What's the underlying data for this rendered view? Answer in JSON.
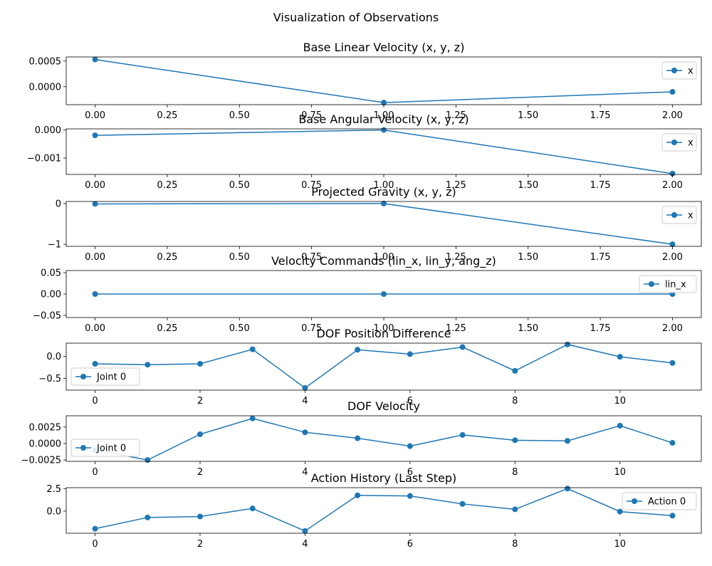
{
  "figure": {
    "suptitle": "Visualization of Observations",
    "series_color": "#1f77b4"
  },
  "chart_data": [
    {
      "type": "line",
      "title": "Base Linear Velocity (x, y, z)",
      "x": [
        0,
        1,
        2
      ],
      "series": [
        {
          "name": "x",
          "values": [
            0.00053,
            -0.00031,
            -0.0001
          ]
        }
      ],
      "xlim": [
        -0.1,
        2.1
      ],
      "ylim": [
        -0.00035,
        0.00058
      ],
      "xticks": [
        0,
        0.25,
        0.5,
        0.75,
        1.0,
        1.25,
        1.5,
        1.75,
        2.0
      ],
      "xtick_labels": [
        "0.00",
        "0.25",
        "0.50",
        "0.75",
        "1.00",
        "1.25",
        "1.50",
        "1.75",
        "2.00"
      ],
      "yticks": [
        0,
        0.0005
      ],
      "ytick_labels": [
        "0.0000",
        "0.0005"
      ],
      "legend": "right"
    },
    {
      "type": "line",
      "title": "Base Angular Velocity (x, y, z)",
      "x": [
        0,
        1,
        2
      ],
      "series": [
        {
          "name": "x",
          "values": [
            -0.00019,
            0.0,
            -0.00155
          ]
        }
      ],
      "xlim": [
        -0.1,
        2.1
      ],
      "ylim": [
        -0.00158,
        4e-05
      ],
      "xticks": [
        0,
        0.25,
        0.5,
        0.75,
        1.0,
        1.25,
        1.5,
        1.75,
        2.0
      ],
      "xtick_labels": [
        "0.00",
        "0.25",
        "0.50",
        "0.75",
        "1.00",
        "1.25",
        "1.50",
        "1.75",
        "2.00"
      ],
      "yticks": [
        0,
        -0.001
      ],
      "ytick_labels": [
        "0.000",
        "−0.001"
      ],
      "legend": "right"
    },
    {
      "type": "line",
      "title": "Projected Gravity (x, y, z)",
      "x": [
        0,
        1,
        2
      ],
      "series": [
        {
          "name": "x",
          "values": [
            -0.01,
            0.0,
            -1.0
          ]
        }
      ],
      "xlim": [
        -0.1,
        2.1
      ],
      "ylim": [
        -1.05,
        0.05
      ],
      "xticks": [
        0,
        0.25,
        0.5,
        0.75,
        1.0,
        1.25,
        1.5,
        1.75,
        2.0
      ],
      "xtick_labels": [
        "0.00",
        "0.25",
        "0.50",
        "0.75",
        "1.00",
        "1.25",
        "1.50",
        "1.75",
        "2.00"
      ],
      "yticks": [
        0,
        -1
      ],
      "ytick_labels": [
        "0",
        "−1"
      ],
      "legend": "right"
    },
    {
      "type": "line",
      "title": "Velocity Commands (lin_x, lin_y, ang_z)",
      "x": [
        0,
        1,
        2
      ],
      "series": [
        {
          "name": "lin_x",
          "values": [
            0,
            0,
            0
          ]
        }
      ],
      "xlim": [
        -0.1,
        2.1
      ],
      "ylim": [
        -0.055,
        0.055
      ],
      "xticks": [
        0,
        0.25,
        0.5,
        0.75,
        1.0,
        1.25,
        1.5,
        1.75,
        2.0
      ],
      "xtick_labels": [
        "0.00",
        "0.25",
        "0.50",
        "0.75",
        "1.00",
        "1.25",
        "1.50",
        "1.75",
        "2.00"
      ],
      "yticks": [
        0.05,
        0,
        -0.05
      ],
      "ytick_labels": [
        "0.05",
        "0.00",
        "−0.05"
      ],
      "legend": "right"
    },
    {
      "type": "line",
      "title": "DOF Position Difference",
      "x": [
        0,
        1,
        2,
        3,
        4,
        5,
        6,
        7,
        8,
        9,
        10,
        11
      ],
      "series": [
        {
          "name": "Joint 0",
          "values": [
            -0.17,
            -0.19,
            -0.17,
            0.16,
            -0.72,
            0.15,
            0.05,
            0.21,
            -0.33,
            0.27,
            -0.01,
            -0.15
          ]
        }
      ],
      "xlim": [
        -0.55,
        11.55
      ],
      "ylim": [
        -0.77,
        0.3
      ],
      "xticks": [
        0,
        2,
        4,
        6,
        8,
        10
      ],
      "xtick_labels": [
        "0",
        "2",
        "4",
        "6",
        "8",
        "10"
      ],
      "yticks": [
        0,
        -0.5
      ],
      "ytick_labels": [
        "0.0",
        "−0.5"
      ],
      "legend": "left"
    },
    {
      "type": "line",
      "title": "DOF Velocity",
      "x": [
        0,
        1,
        2,
        3,
        4,
        5,
        6,
        7,
        8,
        9,
        10,
        11
      ],
      "series": [
        {
          "name": "Joint 0",
          "values": [
            -0.001,
            -0.0025,
            0.0014,
            0.0038,
            0.0017,
            0.0008,
            -0.0004,
            0.0013,
            0.0005,
            0.0004,
            0.0027,
            0.0001
          ]
        }
      ],
      "xlim": [
        -0.55,
        11.55
      ],
      "ylim": [
        -0.0027,
        0.0042
      ],
      "xticks": [
        0,
        2,
        4,
        6,
        8,
        10
      ],
      "xtick_labels": [
        "0",
        "2",
        "4",
        "6",
        "8",
        "10"
      ],
      "yticks": [
        0.0025,
        0,
        -0.0025
      ],
      "ytick_labels": [
        "0.0025",
        "0.0000",
        "−0.0025"
      ],
      "legend": "left"
    },
    {
      "type": "line",
      "title": "Action History (Last Step)",
      "x": [
        0,
        1,
        2,
        3,
        4,
        5,
        6,
        7,
        8,
        9,
        10,
        11
      ],
      "series": [
        {
          "name": "Action 0",
          "values": [
            -1.95,
            -0.7,
            -0.6,
            0.3,
            -2.2,
            1.75,
            1.68,
            0.8,
            0.2,
            2.5,
            -0.05,
            -0.5
          ]
        }
      ],
      "xlim": [
        -0.55,
        11.55
      ],
      "ylim": [
        -2.45,
        2.6
      ],
      "xticks": [
        0,
        2,
        4,
        6,
        8,
        10
      ],
      "xtick_labels": [
        "0",
        "2",
        "4",
        "6",
        "8",
        "10"
      ],
      "yticks": [
        2.5,
        0
      ],
      "ytick_labels": [
        "2.5",
        "0.0"
      ],
      "legend": "right"
    }
  ]
}
